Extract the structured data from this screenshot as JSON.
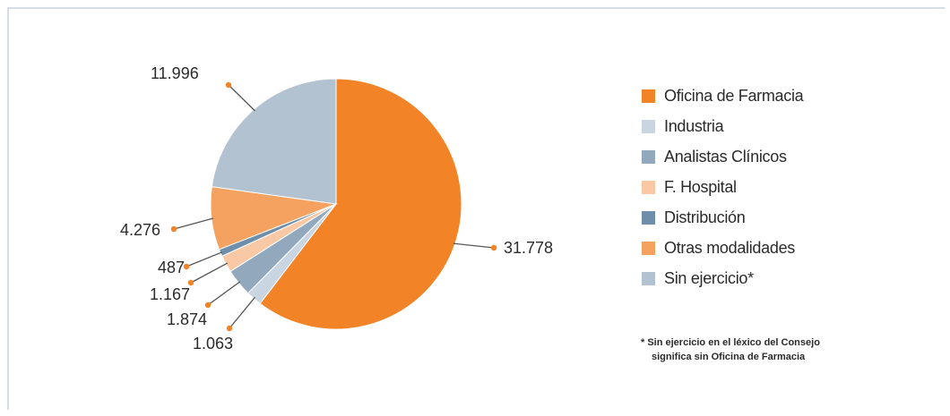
{
  "chart_data": {
    "type": "pie",
    "categories": [
      "Oficina de Farmacia",
      "Industria",
      "Analistas Clínicos",
      "F. Hospital",
      "Distribución",
      "Otras modalidades",
      "Sin ejercicio*"
    ],
    "values": [
      31778,
      1063,
      1874,
      1167,
      487,
      4276,
      11996
    ],
    "value_labels": [
      "31.778",
      "1.063",
      "1.874",
      "1.167",
      "487",
      "4.276",
      "11.996"
    ],
    "colors": [
      "#f28326",
      "#c9d6e2",
      "#91a8bd",
      "#f9c9a6",
      "#6f8ea9",
      "#f5a15f",
      "#b3c2d1"
    ],
    "legend_placement": "right"
  },
  "legend": {
    "items": [
      {
        "label": "Oficina de Farmacia",
        "color": "#f28326"
      },
      {
        "label": "Industria",
        "color": "#c9d6e2"
      },
      {
        "label": "Analistas Clínicos",
        "color": "#91a8bd"
      },
      {
        "label": "F. Hospital",
        "color": "#f9c9a6"
      },
      {
        "label": "Distribución",
        "color": "#6f8ea9"
      },
      {
        "label": "Otras modalidades",
        "color": "#f5a15f"
      },
      {
        "label": "Sin ejercicio*",
        "color": "#b3c2d1"
      }
    ]
  },
  "footnote": {
    "line1": "* Sin ejercicio en el léxico del Consejo",
    "line2": "significa sin Oficina de Farmacia"
  }
}
